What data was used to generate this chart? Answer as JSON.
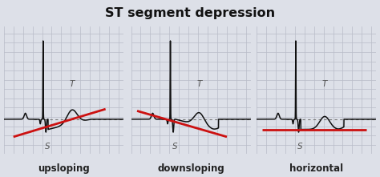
{
  "title": "ST segment depression",
  "title_fontsize": 11.5,
  "background_color": "#dde0e8",
  "grid_color": "#b8bcc8",
  "ecg_color": "#111111",
  "red_color": "#cc1111",
  "dotted_color": "#777777",
  "label_color": "#555555",
  "labels": [
    "upsloping",
    "downsloping",
    "horizontal"
  ],
  "upsloping_line": [
    [
      0.8,
      -0.38
    ],
    [
      8.5,
      0.22
    ]
  ],
  "downsloping_line": [
    [
      0.5,
      0.18
    ],
    [
      8.0,
      -0.38
    ]
  ],
  "horizontal_line": [
    [
      0.5,
      -0.22
    ],
    [
      9.2,
      -0.22
    ]
  ]
}
